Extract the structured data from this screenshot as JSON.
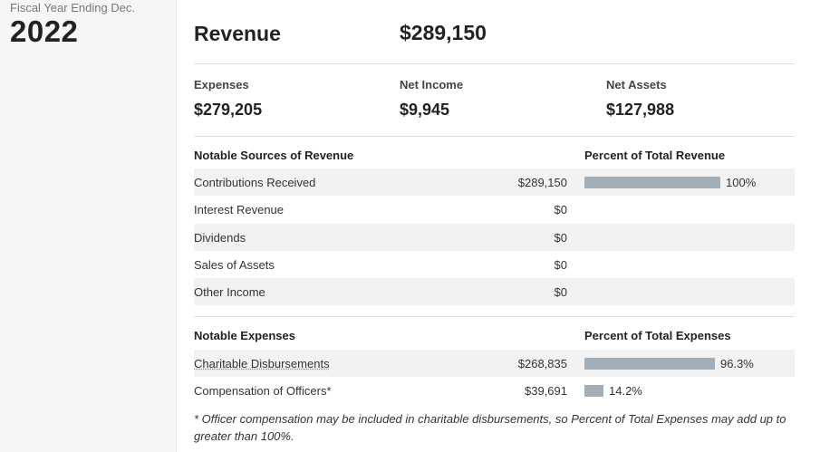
{
  "sidebar": {
    "fiscal_label": "Fiscal Year Ending Dec.",
    "year": "2022"
  },
  "revenue": {
    "label": "Revenue",
    "value": "$289,150"
  },
  "summary": [
    {
      "label": "Expenses",
      "value": "$279,205"
    },
    {
      "label": "Net Income",
      "value": "$9,945"
    },
    {
      "label": "Net Assets",
      "value": "$127,988"
    }
  ],
  "revenue_sources": {
    "heading": "Notable Sources of Revenue",
    "percent_heading": "Percent of Total Revenue",
    "rows": [
      {
        "name": "Contributions Received",
        "amount": "$289,150",
        "percent": 100,
        "percent_label": "100%"
      },
      {
        "name": "Interest Revenue",
        "amount": "$0",
        "percent": null,
        "percent_label": ""
      },
      {
        "name": "Dividends",
        "amount": "$0",
        "percent": null,
        "percent_label": ""
      },
      {
        "name": "Sales of Assets",
        "amount": "$0",
        "percent": null,
        "percent_label": ""
      },
      {
        "name": "Other Income",
        "amount": "$0",
        "percent": null,
        "percent_label": ""
      }
    ]
  },
  "expenses": {
    "heading": "Notable Expenses",
    "percent_heading": "Percent of Total Expenses",
    "rows": [
      {
        "name": "Charitable Disbursements",
        "amount": "$268,835",
        "percent": 96.3,
        "percent_label": "96.3%"
      },
      {
        "name": "Compensation of Officers*",
        "amount": "$39,691",
        "percent": 14.2,
        "percent_label": "14.2%"
      }
    ]
  },
  "footnote": "* Officer compensation may be included in charitable disbursements, so Percent of Total Expenses may add up to greater than 100%.",
  "colors": {
    "bar": "#a2afb8",
    "row_shade": "#f2f2f2",
    "sidebar_bg": "#f6f6f6"
  }
}
